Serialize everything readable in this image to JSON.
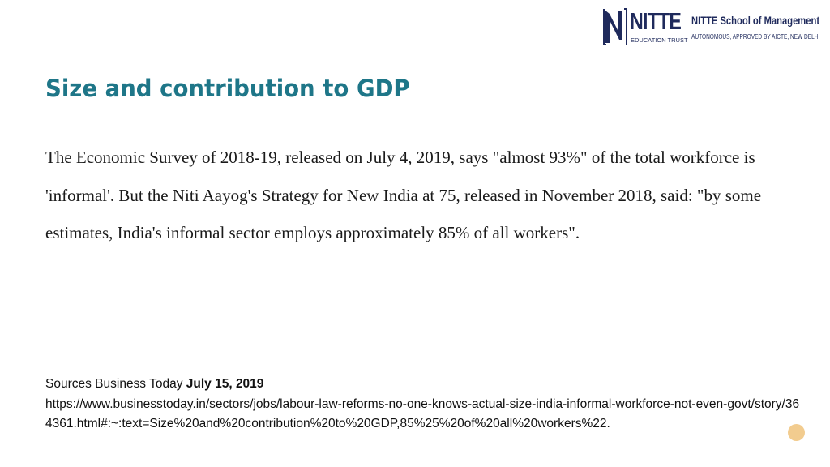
{
  "logo": {
    "brand": "NITTE",
    "trust": "EDUCATION TRUST",
    "school": "NITTE School of Management",
    "approval": "AUTONOMOUS, APPROVED BY AICTE, NEW DELHI",
    "color": "#1f2a5c"
  },
  "slide": {
    "title": "Size and contribution to GDP",
    "body": "The Economic Survey of 2018-19, released on July 4, 2019, says \"almost 93%\" of the total workforce is 'informal'. But the Niti Aayog's Strategy for New India at 75, released in November 2018, said: \"by some estimates, India's informal sector employs approximately 85% of all workers\".",
    "sources_label": "Sources Business Today",
    "sources_date": "July 15, 2019",
    "sources_url": "https://www.businesstoday.in/sectors/jobs/labour-law-reforms-no-one-knows-actual-size-india-informal-workforce-not-even-govt/story/364361.html#:~:text=Size%20and%20contribution%20to%20GDP,85%25%20of%20all%20workers%22."
  },
  "colors": {
    "title": "#1e7688",
    "accent_dot": "#f2cc8f"
  }
}
